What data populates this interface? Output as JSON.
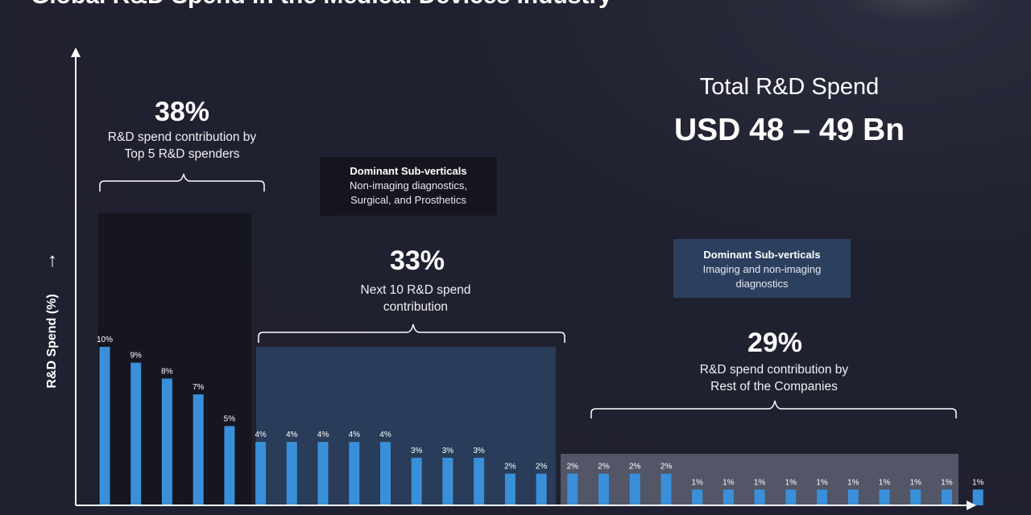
{
  "title": "Global R&D Spend in the Medical Devices Industry",
  "total": {
    "label": "Total R&D Spend",
    "value": "USD 48 – 49 Bn"
  },
  "groups": [
    {
      "percent": "38%",
      "description": "R&D spend contribution by\nTop 5 R&D spenders"
    },
    {
      "percent": "33%",
      "description": "Next 10 R&D spend\ncontribution"
    },
    {
      "percent": "29%",
      "description": "R&D spend contribution by\nRest of the Companies"
    }
  ],
  "callouts": [
    {
      "heading": "Dominant Sub-verticals",
      "body": "Non-imaging diagnostics,\nSurgical, and Prosthetics"
    },
    {
      "heading": "Dominant Sub-verticals",
      "body": "Imaging and non-imaging\ndiagnostics"
    }
  ],
  "chart_data": {
    "type": "bar",
    "title": "Global R&D Spend in the Medical Devices Industry",
    "ylabel": "R&D Spend (%)",
    "xlabel": "",
    "values": [
      10,
      9,
      8,
      7,
      5,
      4,
      4,
      4,
      4,
      4,
      3,
      3,
      3,
      2,
      2,
      2,
      2,
      2,
      2,
      1,
      1,
      1,
      1,
      1,
      1,
      1,
      1,
      1,
      1
    ],
    "labels": [
      "10%",
      "9%",
      "8%",
      "7%",
      "5%",
      "4%",
      "4%",
      "4%",
      "4%",
      "4%",
      "3%",
      "3%",
      "3%",
      "2%",
      "2%",
      "2%",
      "2%",
      "2%",
      "2%",
      "1%",
      "1%",
      "1%",
      "1%",
      "1%",
      "1%",
      "1%",
      "1%",
      "1%",
      "1%"
    ],
    "ylim": [
      0,
      10
    ],
    "grid": false,
    "bar_color": "#3a8fd9"
  },
  "colors": {
    "background": "#202130",
    "bar": "#3a8fd9",
    "group1_panel": "#15161f",
    "group2_panel": "#2a3e5c",
    "group3_panel": "#5c5f70",
    "callout1": "#15161d",
    "callout2": "#2c3f5e"
  }
}
